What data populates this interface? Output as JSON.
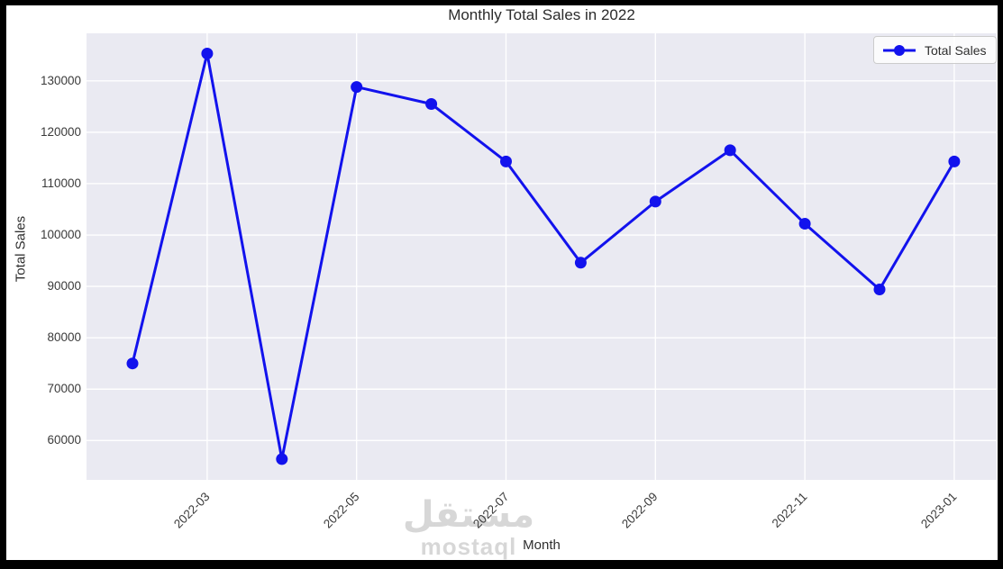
{
  "chart_data": {
    "type": "line",
    "title": "Monthly Total Sales in 2022",
    "xlabel": "Month",
    "ylabel": "Total Sales",
    "legend": {
      "label": "Total Sales",
      "position": "upper right"
    },
    "x": [
      "2022-02",
      "2022-03",
      "2022-04",
      "2022-05",
      "2022-06",
      "2022-07",
      "2022-08",
      "2022-09",
      "2022-10",
      "2022-11",
      "2022-12",
      "2023-01"
    ],
    "series": [
      {
        "name": "Total Sales",
        "values": [
          75000,
          135300,
          56400,
          128800,
          125500,
          114300,
          94600,
          106500,
          116500,
          102200,
          89400,
          114300
        ]
      }
    ],
    "x_tick_indices": [
      1,
      3,
      5,
      7,
      9,
      11
    ],
    "x_tick_labels": [
      "2022-03",
      "2022-05",
      "2022-07",
      "2022-09",
      "2022-11",
      "2023-01"
    ],
    "y_ticks": [
      60000,
      70000,
      80000,
      90000,
      100000,
      110000,
      120000,
      130000
    ],
    "ylim": [
      52350,
      139250
    ],
    "grid": true,
    "legend_position": "upper right",
    "colors": {
      "line": "#1212ed",
      "marker": "#1212ed",
      "plot_background": "#eaeaf2",
      "gridline": "#ffffff",
      "figure_background": "#ffffff",
      "frame": "#000000",
      "text": "#2e2e2e",
      "watermark": "#d7d7d7"
    }
  },
  "watermark": {
    "arabic": "مستقل",
    "latin": "mostaql"
  }
}
